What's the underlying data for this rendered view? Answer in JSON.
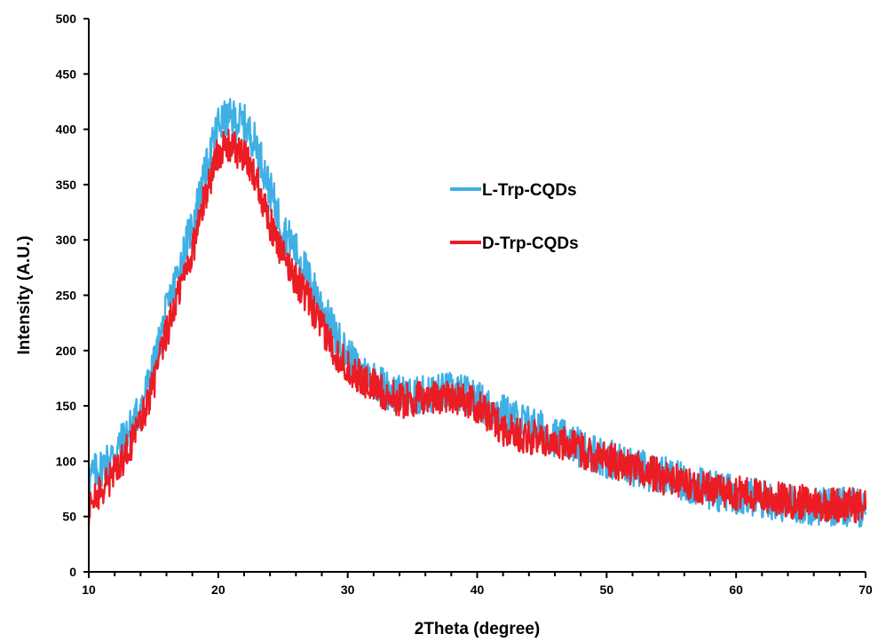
{
  "chart_data": {
    "type": "line",
    "xlabel": "2Theta (degree)",
    "ylabel": "Intensity (A.U.)",
    "xlim": [
      10,
      70
    ],
    "ylim": [
      0,
      500
    ],
    "x_ticks": [
      "10",
      "20",
      "30",
      "40",
      "50",
      "60",
      "70"
    ],
    "y_ticks": [
      "0",
      "50",
      "100",
      "150",
      "200",
      "250",
      "300",
      "350",
      "400",
      "450",
      "500"
    ],
    "grid": false,
    "legend_position": "right",
    "series": [
      {
        "name": "L-Trp-CQDs",
        "color": "#3fb0e4",
        "noise_amplitude": 18,
        "x": [
          10,
          11,
          12,
          13,
          14,
          15,
          16,
          17,
          18,
          19,
          20,
          21,
          22,
          23,
          24,
          25,
          26,
          27,
          28,
          29,
          30,
          31,
          32,
          33,
          34,
          35,
          36,
          37,
          38,
          39,
          40,
          41,
          42,
          43,
          44,
          45,
          46,
          47,
          48,
          49,
          50,
          52,
          54,
          56,
          58,
          60,
          62,
          64,
          66,
          68,
          70
        ],
        "values": [
          85,
          95,
          108,
          125,
          148,
          185,
          235,
          275,
          315,
          360,
          405,
          410,
          405,
          385,
          345,
          310,
          290,
          265,
          240,
          215,
          195,
          180,
          175,
          165,
          160,
          158,
          160,
          162,
          163,
          160,
          155,
          148,
          143,
          138,
          133,
          128,
          122,
          118,
          112,
          108,
          103,
          95,
          88,
          80,
          74,
          70,
          66,
          62,
          60,
          59,
          58
        ]
      },
      {
        "name": "D-Trp-CQDs",
        "color": "#ec1c24",
        "noise_amplitude": 16,
        "x": [
          10,
          11,
          12,
          13,
          14,
          15,
          16,
          17,
          18,
          19,
          20,
          21,
          22,
          23,
          24,
          25,
          26,
          27,
          28,
          29,
          30,
          31,
          32,
          33,
          34,
          35,
          36,
          37,
          38,
          39,
          40,
          41,
          42,
          43,
          44,
          45,
          46,
          47,
          48,
          49,
          50,
          52,
          54,
          56,
          58,
          60,
          62,
          64,
          66,
          68,
          70
        ],
        "values": [
          55,
          75,
          90,
          110,
          135,
          170,
          215,
          255,
          290,
          340,
          380,
          385,
          375,
          355,
          315,
          285,
          265,
          245,
          220,
          200,
          185,
          175,
          168,
          160,
          155,
          155,
          157,
          158,
          160,
          155,
          150,
          140,
          130,
          125,
          122,
          120,
          118,
          115,
          110,
          106,
          102,
          94,
          87,
          80,
          75,
          72,
          68,
          64,
          62,
          61,
          60
        ]
      }
    ]
  }
}
